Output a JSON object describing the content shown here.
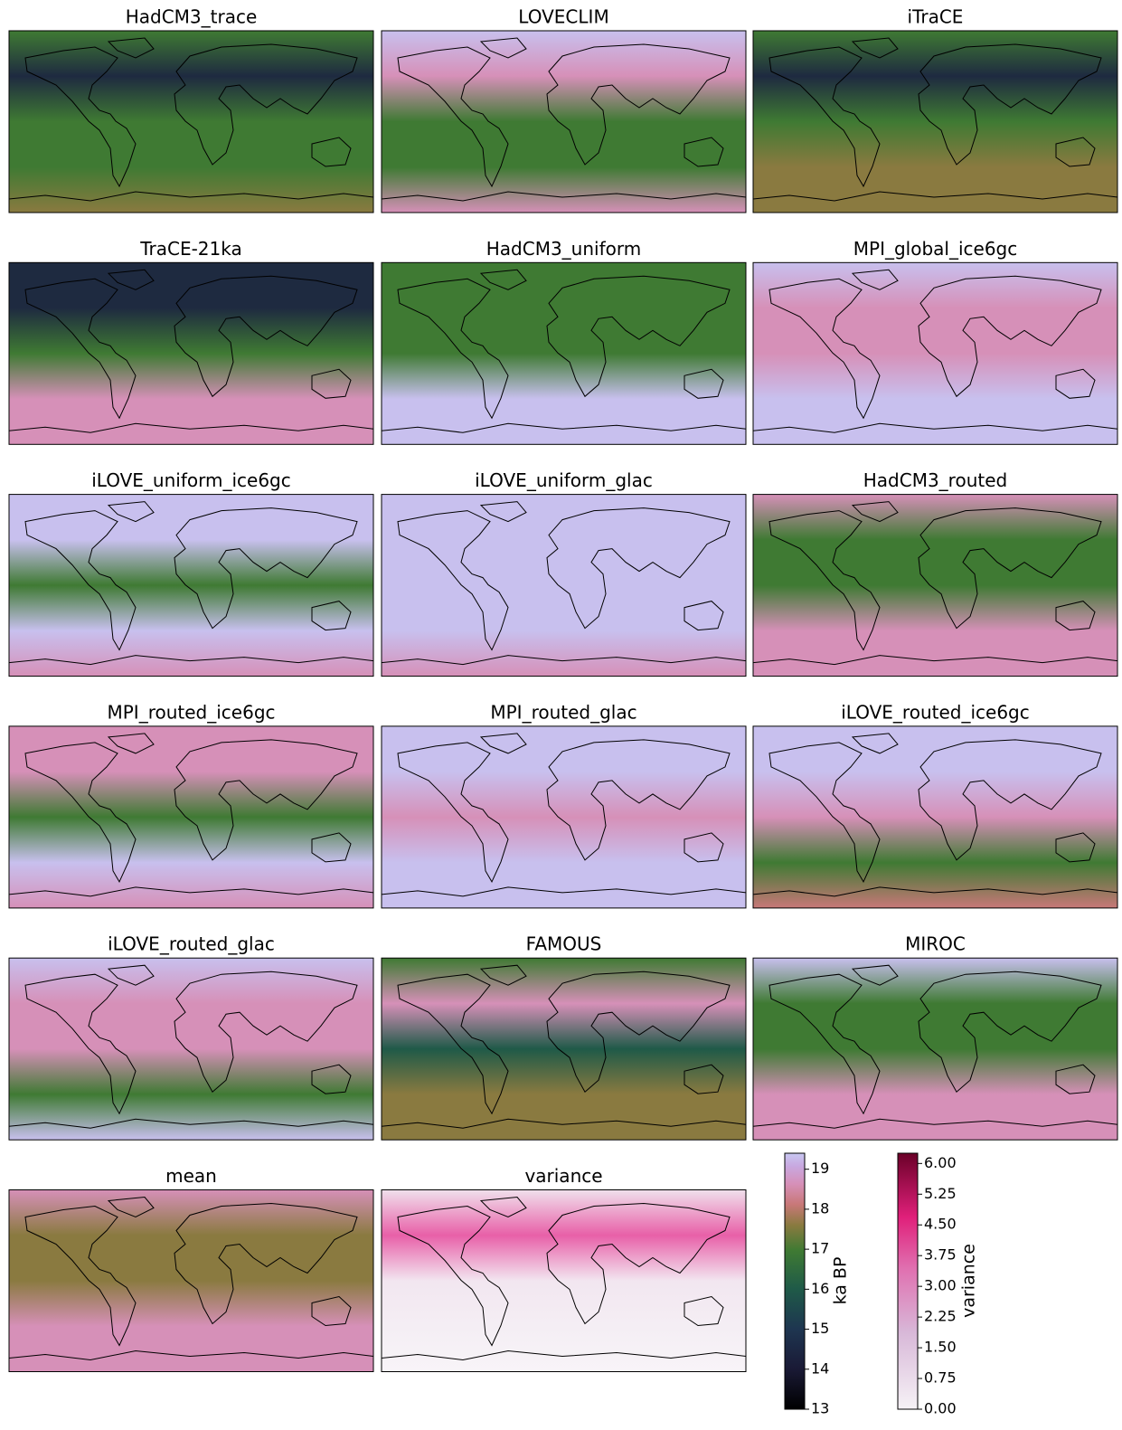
{
  "panels": [
    {
      "title": "HadCM3_trace"
    },
    {
      "title": "LOVECLIM"
    },
    {
      "title": "iTraCE"
    },
    {
      "title": "TraCE-21ka"
    },
    {
      "title": "HadCM3_uniform"
    },
    {
      "title": "MPI_global_ice6gc"
    },
    {
      "title": "iLOVE_uniform_ice6gc"
    },
    {
      "title": "iLOVE_uniform_glac"
    },
    {
      "title": "HadCM3_routed"
    },
    {
      "title": "MPI_routed_ice6gc"
    },
    {
      "title": "MPI_routed_glac"
    },
    {
      "title": "iLOVE_routed_ice6gc"
    },
    {
      "title": "iLOVE_routed_glac"
    },
    {
      "title": "FAMOUS"
    },
    {
      "title": "MIROC"
    },
    {
      "title": "mean"
    },
    {
      "title": "variance"
    }
  ],
  "colorbars": [
    {
      "label": "ka BP",
      "ylim": [
        13,
        19.4
      ],
      "yticks": [
        13,
        14,
        15,
        16,
        17,
        18,
        19
      ]
    },
    {
      "label": "variance",
      "ylim": [
        0,
        6.25
      ],
      "yticks": [
        {
          "value": 0,
          "label": "0.00"
        },
        {
          "value": 0.75,
          "label": "0.75"
        },
        {
          "value": 1.5,
          "label": "1.50"
        },
        {
          "value": 2.25,
          "label": "2.25"
        },
        {
          "value": 3,
          "label": "3.00"
        },
        {
          "value": 3.75,
          "label": "3.75"
        },
        {
          "value": 4.5,
          "label": "4.50"
        },
        {
          "value": 5.25,
          "label": "5.25"
        },
        {
          "value": 6,
          "label": "6.00"
        }
      ]
    }
  ]
}
